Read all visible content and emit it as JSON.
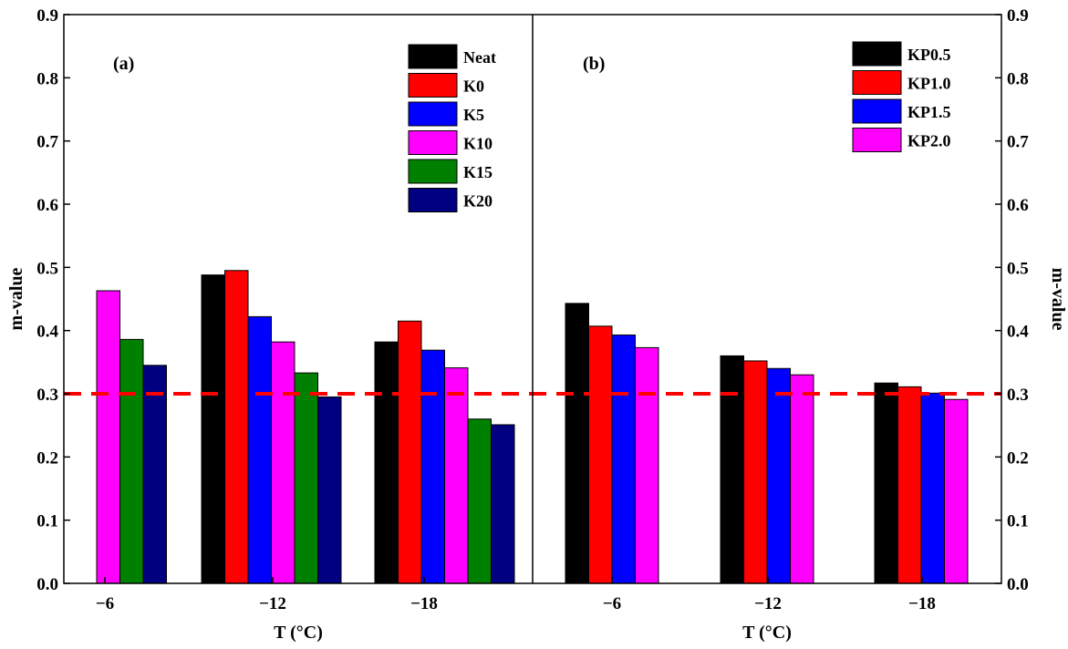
{
  "chart_data": {
    "type": "bar",
    "ylabel": "m-value",
    "xlabel": "T (°C)",
    "ylim": [
      0,
      0.9
    ],
    "yticks": [
      "0.0",
      "0.1",
      "0.2",
      "0.3",
      "0.4",
      "0.5",
      "0.6",
      "0.7",
      "0.8",
      "0.9"
    ],
    "reference_line": {
      "y": 0.3,
      "style": "dashed",
      "color": "#ff0000"
    },
    "panels": [
      {
        "label": "(a)",
        "categories": [
          "−6",
          "−12",
          "−18"
        ],
        "series": [
          {
            "name": "Neat",
            "color": "#000000",
            "values": [
              null,
              0.488,
              0.382
            ]
          },
          {
            "name": "K0",
            "color": "#ff0000",
            "values": [
              null,
              0.495,
              0.415
            ]
          },
          {
            "name": "K5",
            "color": "#0000ff",
            "values": [
              null,
              0.422,
              0.369
            ]
          },
          {
            "name": "K10",
            "color": "#ff00ff",
            "values": [
              0.463,
              0.382,
              0.341
            ]
          },
          {
            "name": "K15",
            "color": "#008000",
            "values": [
              0.386,
              0.333,
              0.26
            ]
          },
          {
            "name": "K20",
            "color": "#000080",
            "values": [
              0.345,
              0.295,
              0.251
            ]
          }
        ]
      },
      {
        "label": "(b)",
        "categories": [
          "−6",
          "−12",
          "−18"
        ],
        "series": [
          {
            "name": "KP0.5",
            "color": "#000000",
            "values": [
              0.443,
              0.36,
              0.317
            ]
          },
          {
            "name": "KP1.0",
            "color": "#ff0000",
            "values": [
              0.407,
              0.352,
              0.311
            ]
          },
          {
            "name": "KP1.5",
            "color": "#0000ff",
            "values": [
              0.393,
              0.34,
              0.301
            ]
          },
          {
            "name": "KP2.0",
            "color": "#ff00ff",
            "values": [
              0.373,
              0.33,
              0.291
            ]
          }
        ]
      }
    ]
  }
}
